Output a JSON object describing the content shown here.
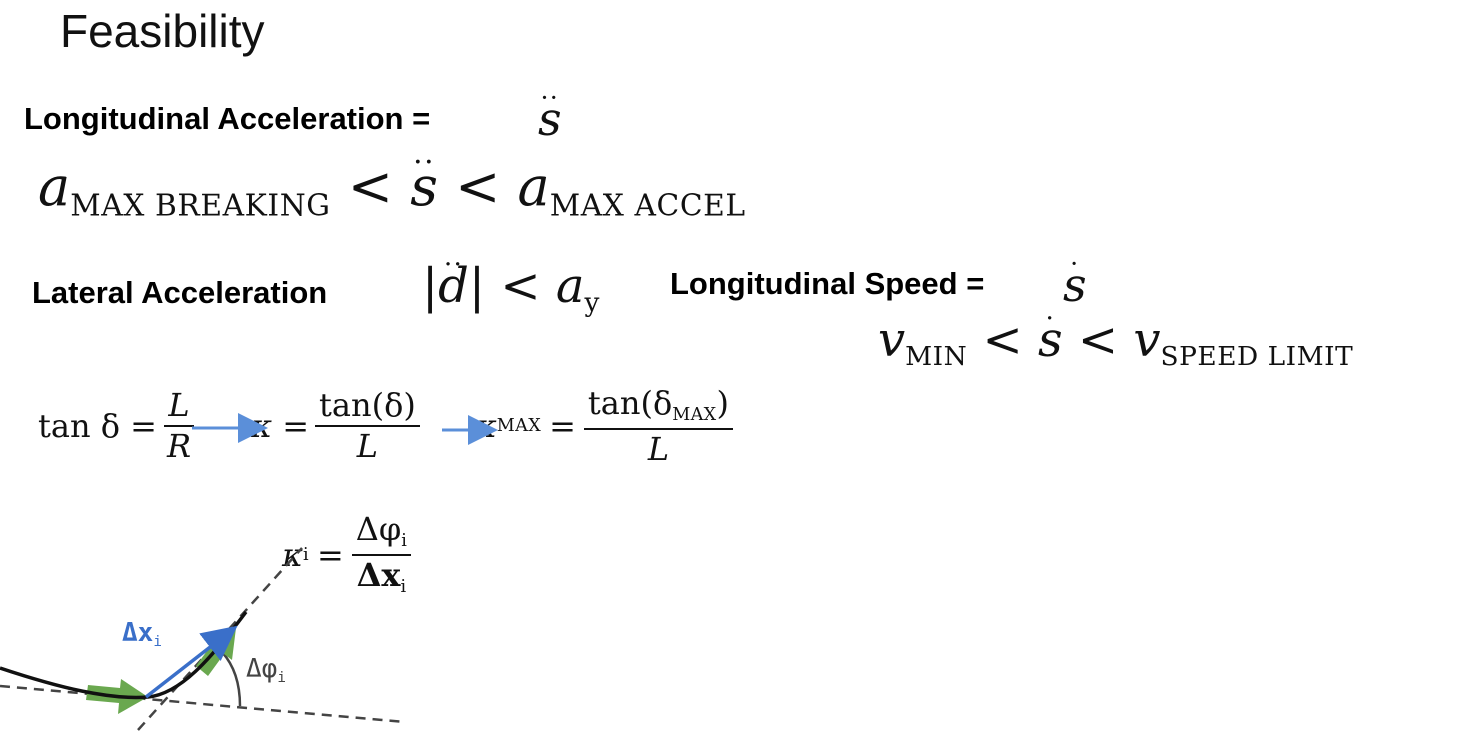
{
  "slide": {
    "title": "Feasibility",
    "labels": {
      "long_accel": "Longitudinal Acceleration =",
      "lat_accel": "Lateral Acceleration",
      "long_speed": "Longitudinal Speed ="
    },
    "eq_long_accel": {
      "lhs_var": "a",
      "lhs_sub": "MAX BREAKING",
      "mid_var": "s",
      "rhs_var": "a",
      "rhs_sub": "MAX ACCEL",
      "op": "<"
    },
    "eq_lat_accel": {
      "var": "d",
      "rhs_var": "a",
      "rhs_sub": "y",
      "op": "<"
    },
    "eq_long_speed": {
      "lhs_var": "v",
      "lhs_sub": "MIN",
      "mid_var": "s",
      "rhs_var": "v",
      "rhs_sub": "SPEED LIMIT",
      "op": "<"
    },
    "curvature_chain": {
      "lhs": "tan δ =",
      "frac1_num": "L",
      "frac1_den": "R",
      "kappa_eq": "κ =",
      "frac2_num": "tan(δ)",
      "frac2_den": "L",
      "kappa_max": "κ",
      "kappa_max_sub": "MAX",
      "frac3_num": "tan(δ",
      "frac3_num_sub": "MAX",
      "frac3_num_end": ")",
      "frac3_den": "L",
      "arrow_color": "#5b8fd9"
    },
    "discrete_curvature": {
      "lhs": "κ",
      "lhs_sub": "i",
      "num": "Δφ",
      "num_sub": "i",
      "den": "Δx",
      "den_sub": "i"
    },
    "diagram": {
      "dx_label": "Δx",
      "dx_sub": "i",
      "dphi_label": "Δφ",
      "dphi_sub": "i",
      "vector_color": "#3a6fc9",
      "arrow_fill": "#6aa84f"
    }
  }
}
